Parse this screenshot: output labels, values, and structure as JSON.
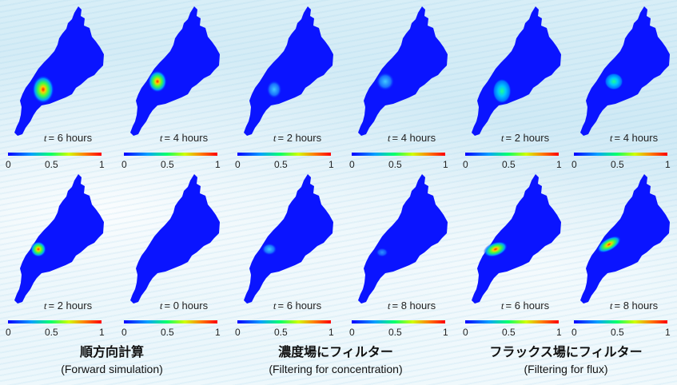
{
  "colorbar": {
    "min": "0",
    "mid": "0.5",
    "max": "1"
  },
  "time_symbol": "t",
  "panels": [
    {
      "time": "= 6 hours"
    },
    {
      "time": "= 4 hours"
    },
    {
      "time": "= 2 hours"
    },
    {
      "time": "= 4 hours"
    },
    {
      "time": "= 2 hours"
    },
    {
      "time": "= 4 hours"
    },
    {
      "time": "= 2 hours"
    },
    {
      "time": "= 0 hours"
    },
    {
      "time": "= 6 hours"
    },
    {
      "time": "= 8 hours"
    },
    {
      "time": "= 6 hours"
    },
    {
      "time": "= 8 hours"
    }
  ],
  "captions": [
    {
      "jp": "順方向計算",
      "en": "(Forward simulation)"
    },
    {
      "jp": "濃度場にフィルター",
      "en": "(Filtering for concentration)"
    },
    {
      "jp": "フラックス場にフィルター",
      "en": "(Filtering for flux)"
    }
  ]
}
